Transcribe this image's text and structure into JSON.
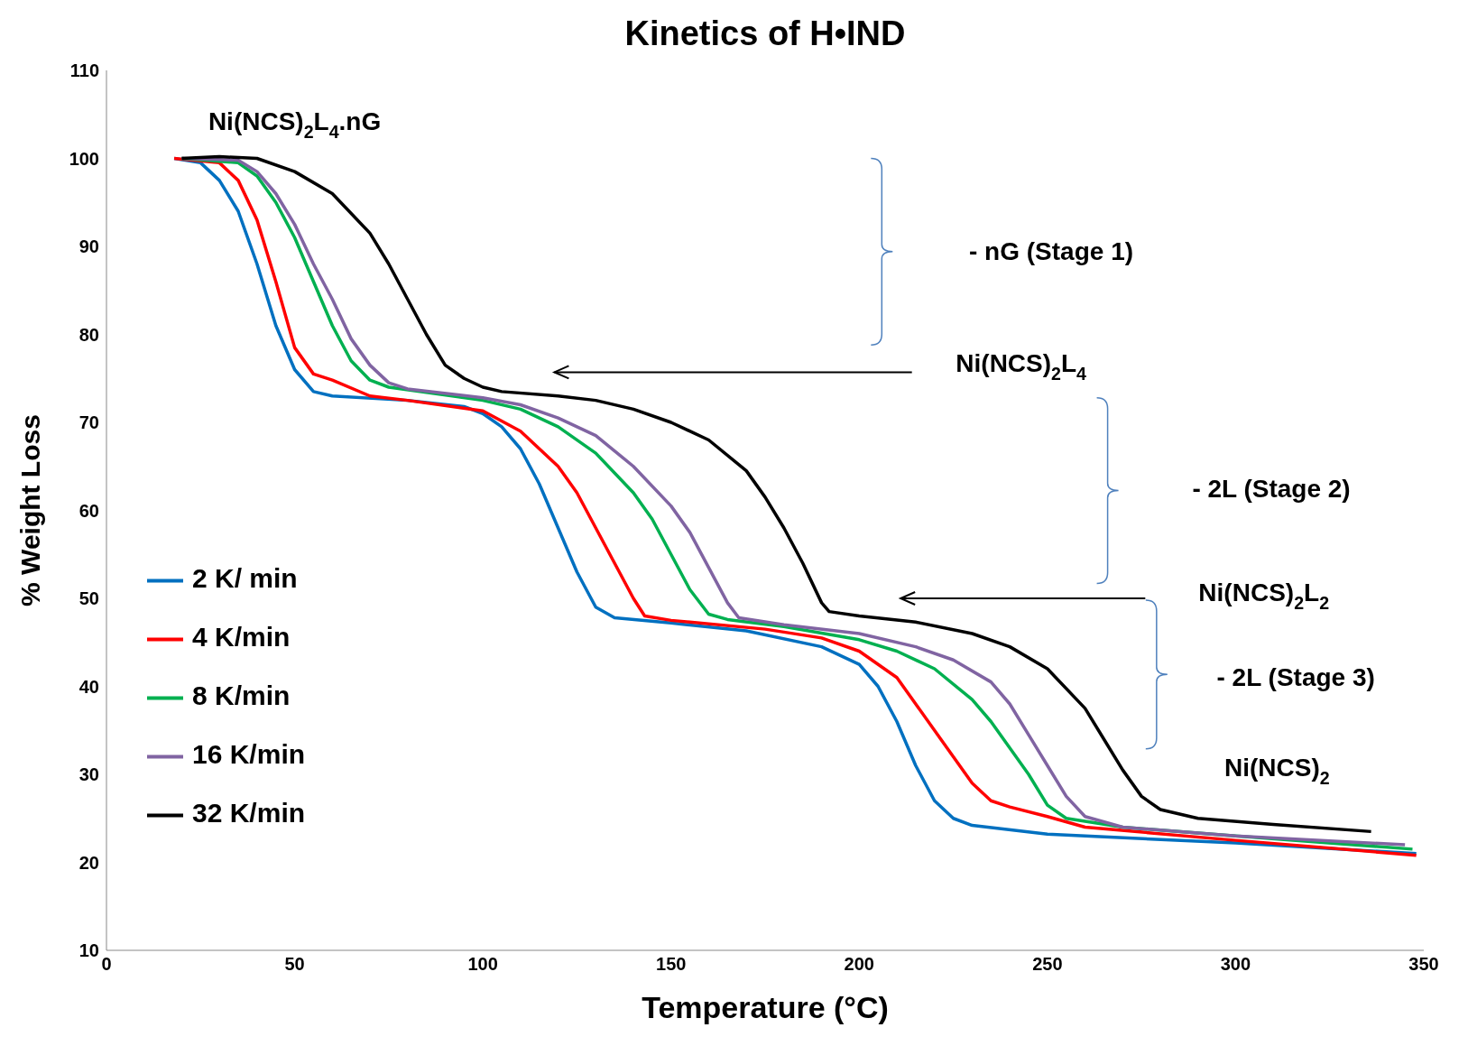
{
  "chart_data": {
    "type": "line",
    "title": "Kinetics of H•IND",
    "xlabel": "Temperature  (°C)",
    "ylabel": "% Weight Loss",
    "xlim": [
      0,
      350
    ],
    "xticks": [
      0,
      50,
      100,
      150,
      200,
      250,
      300,
      350
    ],
    "ylim": [
      10,
      110
    ],
    "yticks": [
      10,
      20,
      30,
      40,
      50,
      60,
      70,
      80,
      90,
      100,
      110
    ],
    "grid": false,
    "legend": "left",
    "marker": "none",
    "line_style": "solid",
    "annotations": [
      "Ni(NCS)$_{2}$L$_{4}$.nG",
      "- nG (Stage 1)",
      "Ni(NCS)$_{2}$L$_{4}$",
      "- 2L (Stage 2)",
      "Ni(NCS)$_{2}$L$_{2}$",
      "- 2L (Stage 3)",
      "Ni(NCS)$_{2}$"
    ],
    "series": [
      {
        "name": "2 K/ min",
        "color": "#0070c0",
        "x": [
          18,
          25,
          30,
          35,
          40,
          45,
          50,
          55,
          60,
          80,
          95,
          100,
          105,
          110,
          115,
          120,
          125,
          130,
          135,
          150,
          170,
          190,
          200,
          205,
          210,
          215,
          220,
          225,
          230,
          250,
          300,
          348
        ],
        "values": [
          100,
          99.5,
          97.5,
          94,
          88,
          81,
          76,
          73.5,
          73,
          72.5,
          71.8,
          71,
          69.5,
          67,
          63,
          58,
          53,
          49,
          47.8,
          47.2,
          46.3,
          44.5,
          42.5,
          40,
          36,
          31,
          27,
          25,
          24.2,
          23.2,
          22.2,
          21
        ]
      },
      {
        "name": "4 K/min",
        "color": "#ff0000",
        "x": [
          18,
          30,
          35,
          40,
          45,
          50,
          55,
          60,
          70,
          80,
          100,
          110,
          120,
          125,
          130,
          135,
          140,
          143,
          150,
          175,
          190,
          200,
          210,
          215,
          220,
          225,
          230,
          235,
          240,
          250,
          260,
          300,
          348
        ],
        "values": [
          100,
          99.5,
          97.5,
          93,
          86,
          78.5,
          75.5,
          74.8,
          73,
          72.5,
          71.3,
          69,
          65,
          62,
          58,
          54,
          50,
          48,
          47.5,
          46.5,
          45.5,
          44,
          41,
          38,
          35,
          32,
          29,
          27,
          26.3,
          25.2,
          24,
          22.5,
          20.8
        ]
      },
      {
        "name": "8 K/min",
        "color": "#00b050",
        "x": [
          20,
          35,
          40,
          45,
          50,
          55,
          60,
          65,
          70,
          75,
          100,
          110,
          120,
          130,
          140,
          145,
          150,
          155,
          160,
          165,
          180,
          200,
          210,
          220,
          230,
          235,
          240,
          245,
          250,
          255,
          270,
          300,
          347
        ],
        "values": [
          100,
          99.5,
          98,
          95,
          91,
          86,
          81,
          77,
          74.8,
          74,
          72.5,
          71.5,
          69.5,
          66.5,
          62,
          59,
          55,
          51,
          48.2,
          47.6,
          46.8,
          45.3,
          44,
          42,
          38.5,
          36,
          33,
          30,
          26.5,
          25,
          24,
          23,
          21.5
        ]
      },
      {
        "name": "16 K/min",
        "color": "#8064a2",
        "x": [
          20,
          35,
          40,
          45,
          50,
          55,
          60,
          65,
          70,
          75,
          80,
          100,
          110,
          120,
          130,
          140,
          150,
          155,
          160,
          165,
          168,
          180,
          200,
          215,
          225,
          235,
          240,
          245,
          250,
          255,
          260,
          270,
          300,
          345
        ],
        "values": [
          100,
          99.8,
          98.5,
          96,
          92.5,
          88,
          84,
          79.5,
          76.5,
          74.5,
          73.8,
          72.8,
          72,
          70.5,
          68.5,
          65,
          60.5,
          57.5,
          53.5,
          49.5,
          47.8,
          47,
          46,
          44.5,
          43,
          40.5,
          38,
          34.5,
          31,
          27.5,
          25.2,
          24,
          23,
          22
        ]
      },
      {
        "name": "32 K/min",
        "color": "#000000",
        "x": [
          20,
          30,
          40,
          50,
          60,
          70,
          75,
          80,
          85,
          90,
          95,
          100,
          105,
          120,
          130,
          140,
          150,
          160,
          170,
          175,
          180,
          185,
          190,
          192,
          200,
          215,
          230,
          240,
          250,
          260,
          265,
          270,
          275,
          280,
          290,
          310,
          336
        ],
        "values": [
          100,
          100.2,
          100,
          98.5,
          96,
          91.5,
          88,
          84,
          80,
          76.5,
          75,
          74,
          73.5,
          73,
          72.5,
          71.5,
          70,
          68,
          64.5,
          61.5,
          58,
          54,
          49.5,
          48.5,
          48,
          47.3,
          46,
          44.5,
          42,
          37.5,
          34,
          30.5,
          27.5,
          26,
          25,
          24.3,
          23.5
        ]
      }
    ]
  }
}
